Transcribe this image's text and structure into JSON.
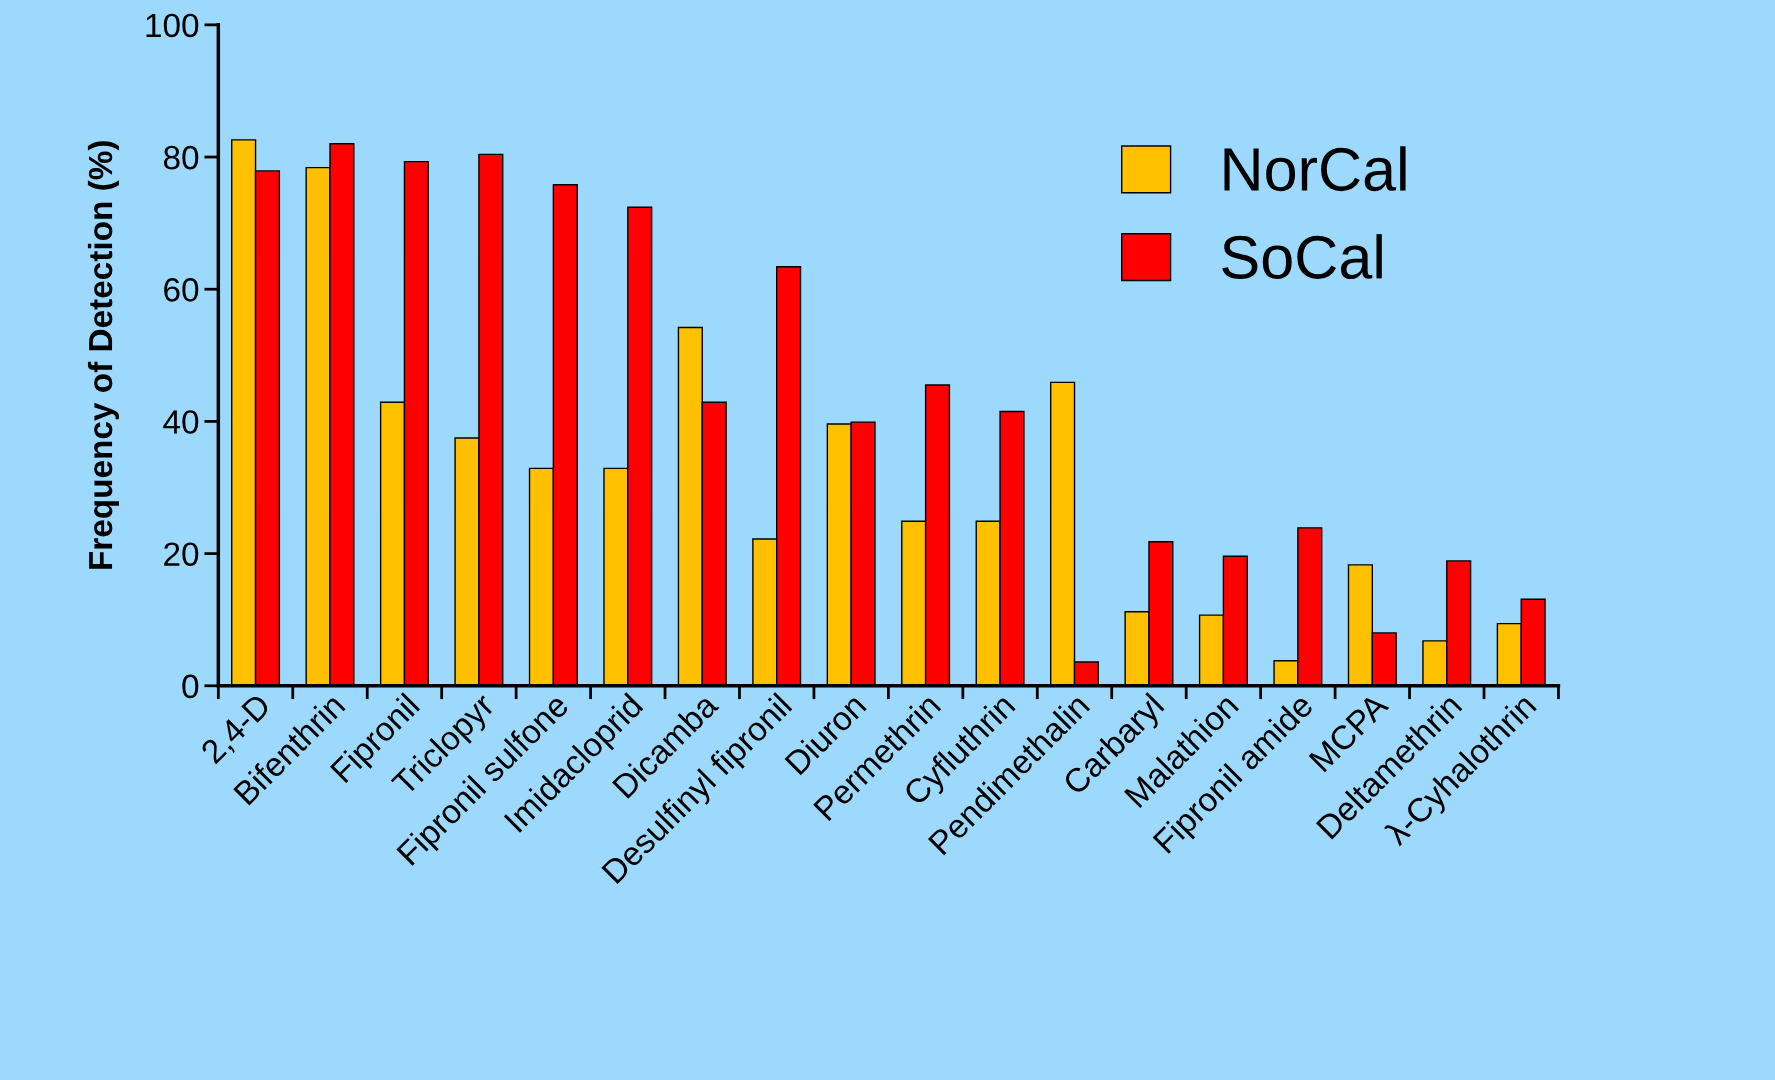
{
  "chart_data": {
    "type": "bar",
    "ylabel": "Frequency of Detection (%)",
    "categories": [
      "2,4-D",
      "Bifenthrin",
      "Fipronil",
      "Triclopyr",
      "Fipronil sulfone",
      "Imidacloprid",
      "Dicamba",
      "Desulfinyl fipronil",
      "Diuron",
      "Permethrin",
      "Cyfluthrin",
      "Pendimethalin",
      "Carbaryl",
      "Malathion",
      "Fipronil amide",
      "MCPA",
      "Deltamethrin",
      "λ-Cyhalothrin"
    ],
    "series": [
      {
        "name": "NorCal",
        "color": "#ffc000",
        "values": [
          82.6,
          78.4,
          42.9,
          37.5,
          32.9,
          32.9,
          54.2,
          22.2,
          39.6,
          24.9,
          24.9,
          45.9,
          11.2,
          10.7,
          3.8,
          18.3,
          6.8,
          9.4
        ]
      },
      {
        "name": "SoCal",
        "color": "#ff0000",
        "values": [
          77.9,
          82.0,
          79.3,
          80.4,
          75.8,
          72.4,
          42.9,
          63.4,
          39.9,
          45.5,
          41.5,
          3.6,
          21.8,
          19.6,
          23.9,
          8.0,
          18.9,
          13.1
        ]
      }
    ],
    "ylim": [
      0,
      100
    ],
    "yticks": [
      0,
      20,
      40,
      60,
      80,
      100
    ],
    "grid": false,
    "legend": "top right"
  }
}
